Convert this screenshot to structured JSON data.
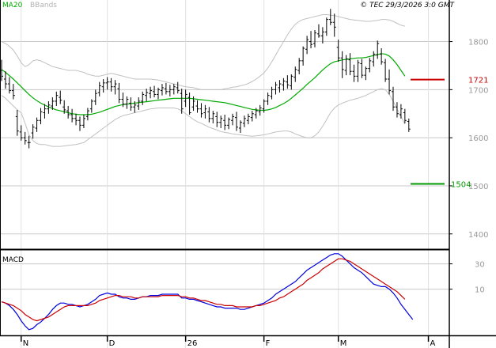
{
  "header": {
    "ma_label": "MA20",
    "bb_label": "BBands",
    "copyright": "© TEC 29/3/2026 3:0 GMT"
  },
  "colors": {
    "ma": "#00aa00",
    "bands": "#c0c0c0",
    "candle": "#000000",
    "resistance": "#cc0000",
    "support": "#009900",
    "macd_line": "#0000dd",
    "signal_line": "#cc0000",
    "grid": "#c8c8c8",
    "label": "#999999",
    "axis": "#000000"
  },
  "chart_data": {
    "type": "candlestick",
    "price_axis": {
      "ylim": [
        1370,
        1870
      ],
      "ticks": [
        1400,
        1500,
        1600,
        1700,
        1800
      ]
    },
    "x_labels": [
      {
        "label": "N",
        "index": 5
      },
      {
        "label": "D",
        "index": 27
      },
      {
        "label": "26",
        "index": 47
      },
      {
        "label": "F",
        "index": 67
      },
      {
        "label": "M",
        "index": 86
      },
      {
        "label": "A",
        "index": 109
      }
    ],
    "ohlc": [
      [
        1740,
        1762,
        1718,
        1728
      ],
      [
        1722,
        1738,
        1702,
        1712
      ],
      [
        1712,
        1726,
        1692,
        1698
      ],
      [
        1698,
        1712,
        1680,
        1688
      ],
      [
        1644,
        1658,
        1604,
        1614
      ],
      [
        1612,
        1626,
        1594,
        1600
      ],
      [
        1600,
        1612,
        1586,
        1594
      ],
      [
        1590,
        1604,
        1578,
        1590
      ],
      [
        1610,
        1628,
        1598,
        1622
      ],
      [
        1620,
        1642,
        1612,
        1636
      ],
      [
        1636,
        1662,
        1628,
        1654
      ],
      [
        1652,
        1670,
        1640,
        1660
      ],
      [
        1660,
        1676,
        1650,
        1668
      ],
      [
        1666,
        1684,
        1658,
        1676
      ],
      [
        1676,
        1696,
        1666,
        1688
      ],
      [
        1684,
        1698,
        1670,
        1678
      ],
      [
        1664,
        1678,
        1650,
        1658
      ],
      [
        1656,
        1666,
        1640,
        1648
      ],
      [
        1648,
        1660,
        1632,
        1640
      ],
      [
        1640,
        1650,
        1626,
        1636
      ],
      [
        1636,
        1644,
        1614,
        1626
      ],
      [
        1626,
        1648,
        1620,
        1640
      ],
      [
        1644,
        1662,
        1636,
        1656
      ],
      [
        1660,
        1680,
        1652,
        1676
      ],
      [
        1676,
        1700,
        1668,
        1692
      ],
      [
        1694,
        1716,
        1686,
        1708
      ],
      [
        1706,
        1722,
        1694,
        1714
      ],
      [
        1714,
        1726,
        1700,
        1716
      ],
      [
        1716,
        1724,
        1696,
        1706
      ],
      [
        1706,
        1720,
        1690,
        1712
      ],
      [
        1702,
        1714,
        1672,
        1680
      ],
      [
        1680,
        1694,
        1664,
        1670
      ],
      [
        1670,
        1686,
        1660,
        1680
      ],
      [
        1672,
        1684,
        1656,
        1664
      ],
      [
        1664,
        1676,
        1652,
        1668
      ],
      [
        1666,
        1684,
        1658,
        1676
      ],
      [
        1676,
        1696,
        1668,
        1690
      ],
      [
        1688,
        1702,
        1676,
        1694
      ],
      [
        1692,
        1706,
        1682,
        1698
      ],
      [
        1696,
        1708,
        1684,
        1690
      ],
      [
        1690,
        1704,
        1680,
        1700
      ],
      [
        1698,
        1712,
        1688,
        1704
      ],
      [
        1702,
        1714,
        1690,
        1696
      ],
      [
        1696,
        1710,
        1686,
        1700
      ],
      [
        1700,
        1712,
        1690,
        1706
      ],
      [
        1704,
        1716,
        1692,
        1698
      ],
      [
        1692,
        1702,
        1650,
        1660
      ],
      [
        1676,
        1700,
        1664,
        1690
      ],
      [
        1684,
        1694,
        1648,
        1652
      ],
      [
        1664,
        1686,
        1656,
        1676
      ],
      [
        1666,
        1678,
        1652,
        1660
      ],
      [
        1660,
        1672,
        1642,
        1650
      ],
      [
        1652,
        1668,
        1640,
        1660
      ],
      [
        1654,
        1664,
        1632,
        1640
      ],
      [
        1640,
        1656,
        1630,
        1650
      ],
      [
        1644,
        1654,
        1622,
        1632
      ],
      [
        1632,
        1646,
        1620,
        1640
      ],
      [
        1636,
        1648,
        1616,
        1626
      ],
      [
        1626,
        1642,
        1618,
        1638
      ],
      [
        1636,
        1650,
        1626,
        1644
      ],
      [
        1642,
        1654,
        1614,
        1622
      ],
      [
        1620,
        1636,
        1610,
        1632
      ],
      [
        1630,
        1646,
        1622,
        1640
      ],
      [
        1636,
        1650,
        1628,
        1644
      ],
      [
        1642,
        1656,
        1634,
        1650
      ],
      [
        1648,
        1662,
        1640,
        1656
      ],
      [
        1654,
        1668,
        1646,
        1662
      ],
      [
        1660,
        1680,
        1652,
        1676
      ],
      [
        1676,
        1694,
        1668,
        1688
      ],
      [
        1686,
        1706,
        1680,
        1700
      ],
      [
        1700,
        1716,
        1690,
        1710
      ],
      [
        1704,
        1720,
        1694,
        1712
      ],
      [
        1710,
        1724,
        1698,
        1718
      ],
      [
        1716,
        1730,
        1702,
        1710
      ],
      [
        1708,
        1732,
        1700,
        1728
      ],
      [
        1726,
        1748,
        1716,
        1742
      ],
      [
        1740,
        1766,
        1732,
        1760
      ],
      [
        1760,
        1790,
        1750,
        1786
      ],
      [
        1784,
        1812,
        1774,
        1804
      ],
      [
        1800,
        1822,
        1786,
        1794
      ],
      [
        1796,
        1824,
        1788,
        1818
      ],
      [
        1816,
        1836,
        1808,
        1812
      ],
      [
        1812,
        1830,
        1796,
        1820
      ],
      [
        1820,
        1850,
        1812,
        1846
      ],
      [
        1846,
        1868,
        1834,
        1840
      ],
      [
        1840,
        1858,
        1810,
        1830
      ],
      [
        1788,
        1804,
        1758,
        1766
      ],
      [
        1766,
        1780,
        1724,
        1742
      ],
      [
        1740,
        1772,
        1730,
        1764
      ],
      [
        1762,
        1776,
        1730,
        1738
      ],
      [
        1738,
        1752,
        1716,
        1728
      ],
      [
        1728,
        1762,
        1716,
        1756
      ],
      [
        1754,
        1764,
        1724,
        1730
      ],
      [
        1730,
        1748,
        1720,
        1744
      ],
      [
        1744,
        1766,
        1736,
        1760
      ],
      [
        1758,
        1780,
        1748,
        1774
      ],
      [
        1772,
        1802,
        1764,
        1796
      ],
      [
        1774,
        1786,
        1752,
        1758
      ],
      [
        1756,
        1764,
        1716,
        1722
      ],
      [
        1722,
        1742,
        1690,
        1698
      ],
      [
        1696,
        1706,
        1656,
        1664
      ],
      [
        1664,
        1674,
        1642,
        1650
      ],
      [
        1648,
        1670,
        1640,
        1660
      ],
      [
        1652,
        1660,
        1630,
        1636
      ],
      [
        1634,
        1640,
        1612,
        1618
      ]
    ],
    "ma20": [
      1742,
      1736,
      1729,
      1722,
      1714,
      1706,
      1698,
      1690,
      1683,
      1677,
      1672,
      1668,
      1664,
      1661,
      1658,
      1656,
      1654,
      1652,
      1650,
      1649,
      1648,
      1648,
      1648,
      1649,
      1651,
      1653,
      1656,
      1659,
      1662,
      1665,
      1667,
      1669,
      1670,
      1671,
      1672,
      1673,
      1674,
      1675,
      1676,
      1677,
      1678,
      1679,
      1680,
      1681,
      1682,
      1682,
      1682,
      1682,
      1682,
      1681,
      1680,
      1679,
      1678,
      1677,
      1676,
      1675,
      1674,
      1673,
      1671,
      1669,
      1667,
      1665,
      1663,
      1661,
      1659,
      1658,
      1657,
      1657,
      1658,
      1660,
      1663,
      1667,
      1671,
      1676,
      1682,
      1689,
      1696,
      1703,
      1711,
      1718,
      1725,
      1733,
      1741,
      1748,
      1754,
      1758,
      1760,
      1762,
      1763,
      1764,
      1765,
      1766,
      1766,
      1767,
      1769,
      1771,
      1773,
      1775,
      1774,
      1770,
      1762,
      1752,
      1740,
      1728
    ],
    "upper_band": [
      1800,
      1796,
      1790,
      1782,
      1770,
      1756,
      1748,
      1752,
      1760,
      1762,
      1760,
      1756,
      1752,
      1748,
      1746,
      1744,
      1742,
      1740,
      1740,
      1740,
      1738,
      1736,
      1732,
      1730,
      1728,
      1728,
      1730,
      1732,
      1734,
      1732,
      1730,
      1728,
      1726,
      1724,
      1722,
      1722,
      1722,
      1722,
      1722,
      1721,
      1720,
      1718,
      1716,
      1714,
      1712,
      1710,
      1708,
      1706,
      1705,
      1704,
      1702,
      1700,
      1700,
      1700,
      1700,
      1700,
      1700,
      1702,
      1703,
      1705,
      1706,
      1708,
      1710,
      1713,
      1717,
      1722,
      1728,
      1735,
      1745,
      1758,
      1772,
      1786,
      1800,
      1814,
      1826,
      1836,
      1842,
      1846,
      1848,
      1850,
      1852,
      1854,
      1856,
      1856,
      1855,
      1854,
      1852,
      1850,
      1848,
      1846,
      1845,
      1844,
      1843,
      1842,
      1842,
      1843,
      1844,
      1846,
      1846,
      1845,
      1842,
      1838,
      1834,
      1832
    ],
    "lower_band": [
      1688,
      1682,
      1674,
      1666,
      1658,
      1652,
      1630,
      1606,
      1594,
      1588,
      1586,
      1586,
      1584,
      1582,
      1582,
      1582,
      1583,
      1584,
      1585,
      1586,
      1588,
      1590,
      1596,
      1602,
      1608,
      1614,
      1620,
      1626,
      1632,
      1638,
      1642,
      1646,
      1648,
      1650,
      1652,
      1654,
      1656,
      1658,
      1660,
      1661,
      1662,
      1662,
      1662,
      1662,
      1662,
      1660,
      1656,
      1650,
      1644,
      1638,
      1633,
      1630,
      1626,
      1622,
      1619,
      1616,
      1613,
      1611,
      1610,
      1608,
      1607,
      1606,
      1605,
      1604,
      1603,
      1604,
      1605,
      1606,
      1608,
      1610,
      1612,
      1613,
      1614,
      1614,
      1612,
      1608,
      1605,
      1602,
      1600,
      1600,
      1604,
      1612,
      1624,
      1638,
      1652,
      1662,
      1668,
      1672,
      1675,
      1678,
      1680,
      1682,
      1685,
      1688,
      1692,
      1696,
      1700,
      1702,
      1700,
      1690,
      1676,
      1660,
      1644,
      1628
    ],
    "macd_panel": {
      "title": "MACD",
      "ylim": [
        -24,
        36
      ],
      "ticks": [
        30,
        10
      ],
      "macd": [
        0,
        -1,
        -3,
        -6,
        -10,
        -15,
        -19,
        -22,
        -21,
        -18,
        -16,
        -13,
        -10,
        -6,
        -3,
        -1,
        -1,
        -2,
        -2,
        -3,
        -4,
        -3,
        -2,
        0,
        2,
        5,
        6,
        7,
        6,
        6,
        4,
        3,
        3,
        2,
        2,
        3,
        4,
        4,
        5,
        5,
        5,
        6,
        6,
        6,
        6,
        6,
        3,
        3,
        2,
        2,
        1,
        0,
        -1,
        -2,
        -3,
        -4,
        -4,
        -5,
        -5,
        -5,
        -5,
        -6,
        -6,
        -5,
        -4,
        -3,
        -2,
        -1,
        1,
        3,
        6,
        8,
        10,
        12,
        14,
        16,
        19,
        22,
        25,
        27,
        29,
        31,
        33,
        35,
        37,
        38,
        38,
        36,
        33,
        30,
        27,
        25,
        23,
        20,
        17,
        14,
        13,
        12,
        12,
        10,
        7,
        3,
        -2,
        -6,
        -10,
        -14
      ],
      "signal": [
        0,
        -1,
        -2,
        -3,
        -5,
        -7,
        -10,
        -12,
        -14,
        -15,
        -14,
        -13,
        -12,
        -10,
        -8,
        -6,
        -4,
        -3,
        -3,
        -3,
        -3,
        -3,
        -3,
        -2,
        -1,
        1,
        2,
        3,
        4,
        5,
        5,
        4,
        4,
        4,
        3,
        3,
        4,
        4,
        4,
        4,
        4,
        5,
        5,
        5,
        5,
        5,
        4,
        4,
        3,
        3,
        2,
        1,
        1,
        0,
        -1,
        -2,
        -2,
        -3,
        -3,
        -3,
        -4,
        -4,
        -4,
        -4,
        -4,
        -3,
        -3,
        -2,
        -1,
        0,
        1,
        3,
        4,
        6,
        8,
        10,
        12,
        14,
        17,
        19,
        21,
        23,
        26,
        28,
        30,
        32,
        34,
        34,
        33,
        32,
        30,
        28,
        26,
        24,
        22,
        20,
        18,
        16,
        14,
        12,
        10,
        8,
        5,
        2
      ]
    }
  },
  "levels": {
    "resistance": {
      "value": 1721,
      "label": "1721"
    },
    "support": {
      "value": 1504,
      "label": "1504"
    }
  }
}
